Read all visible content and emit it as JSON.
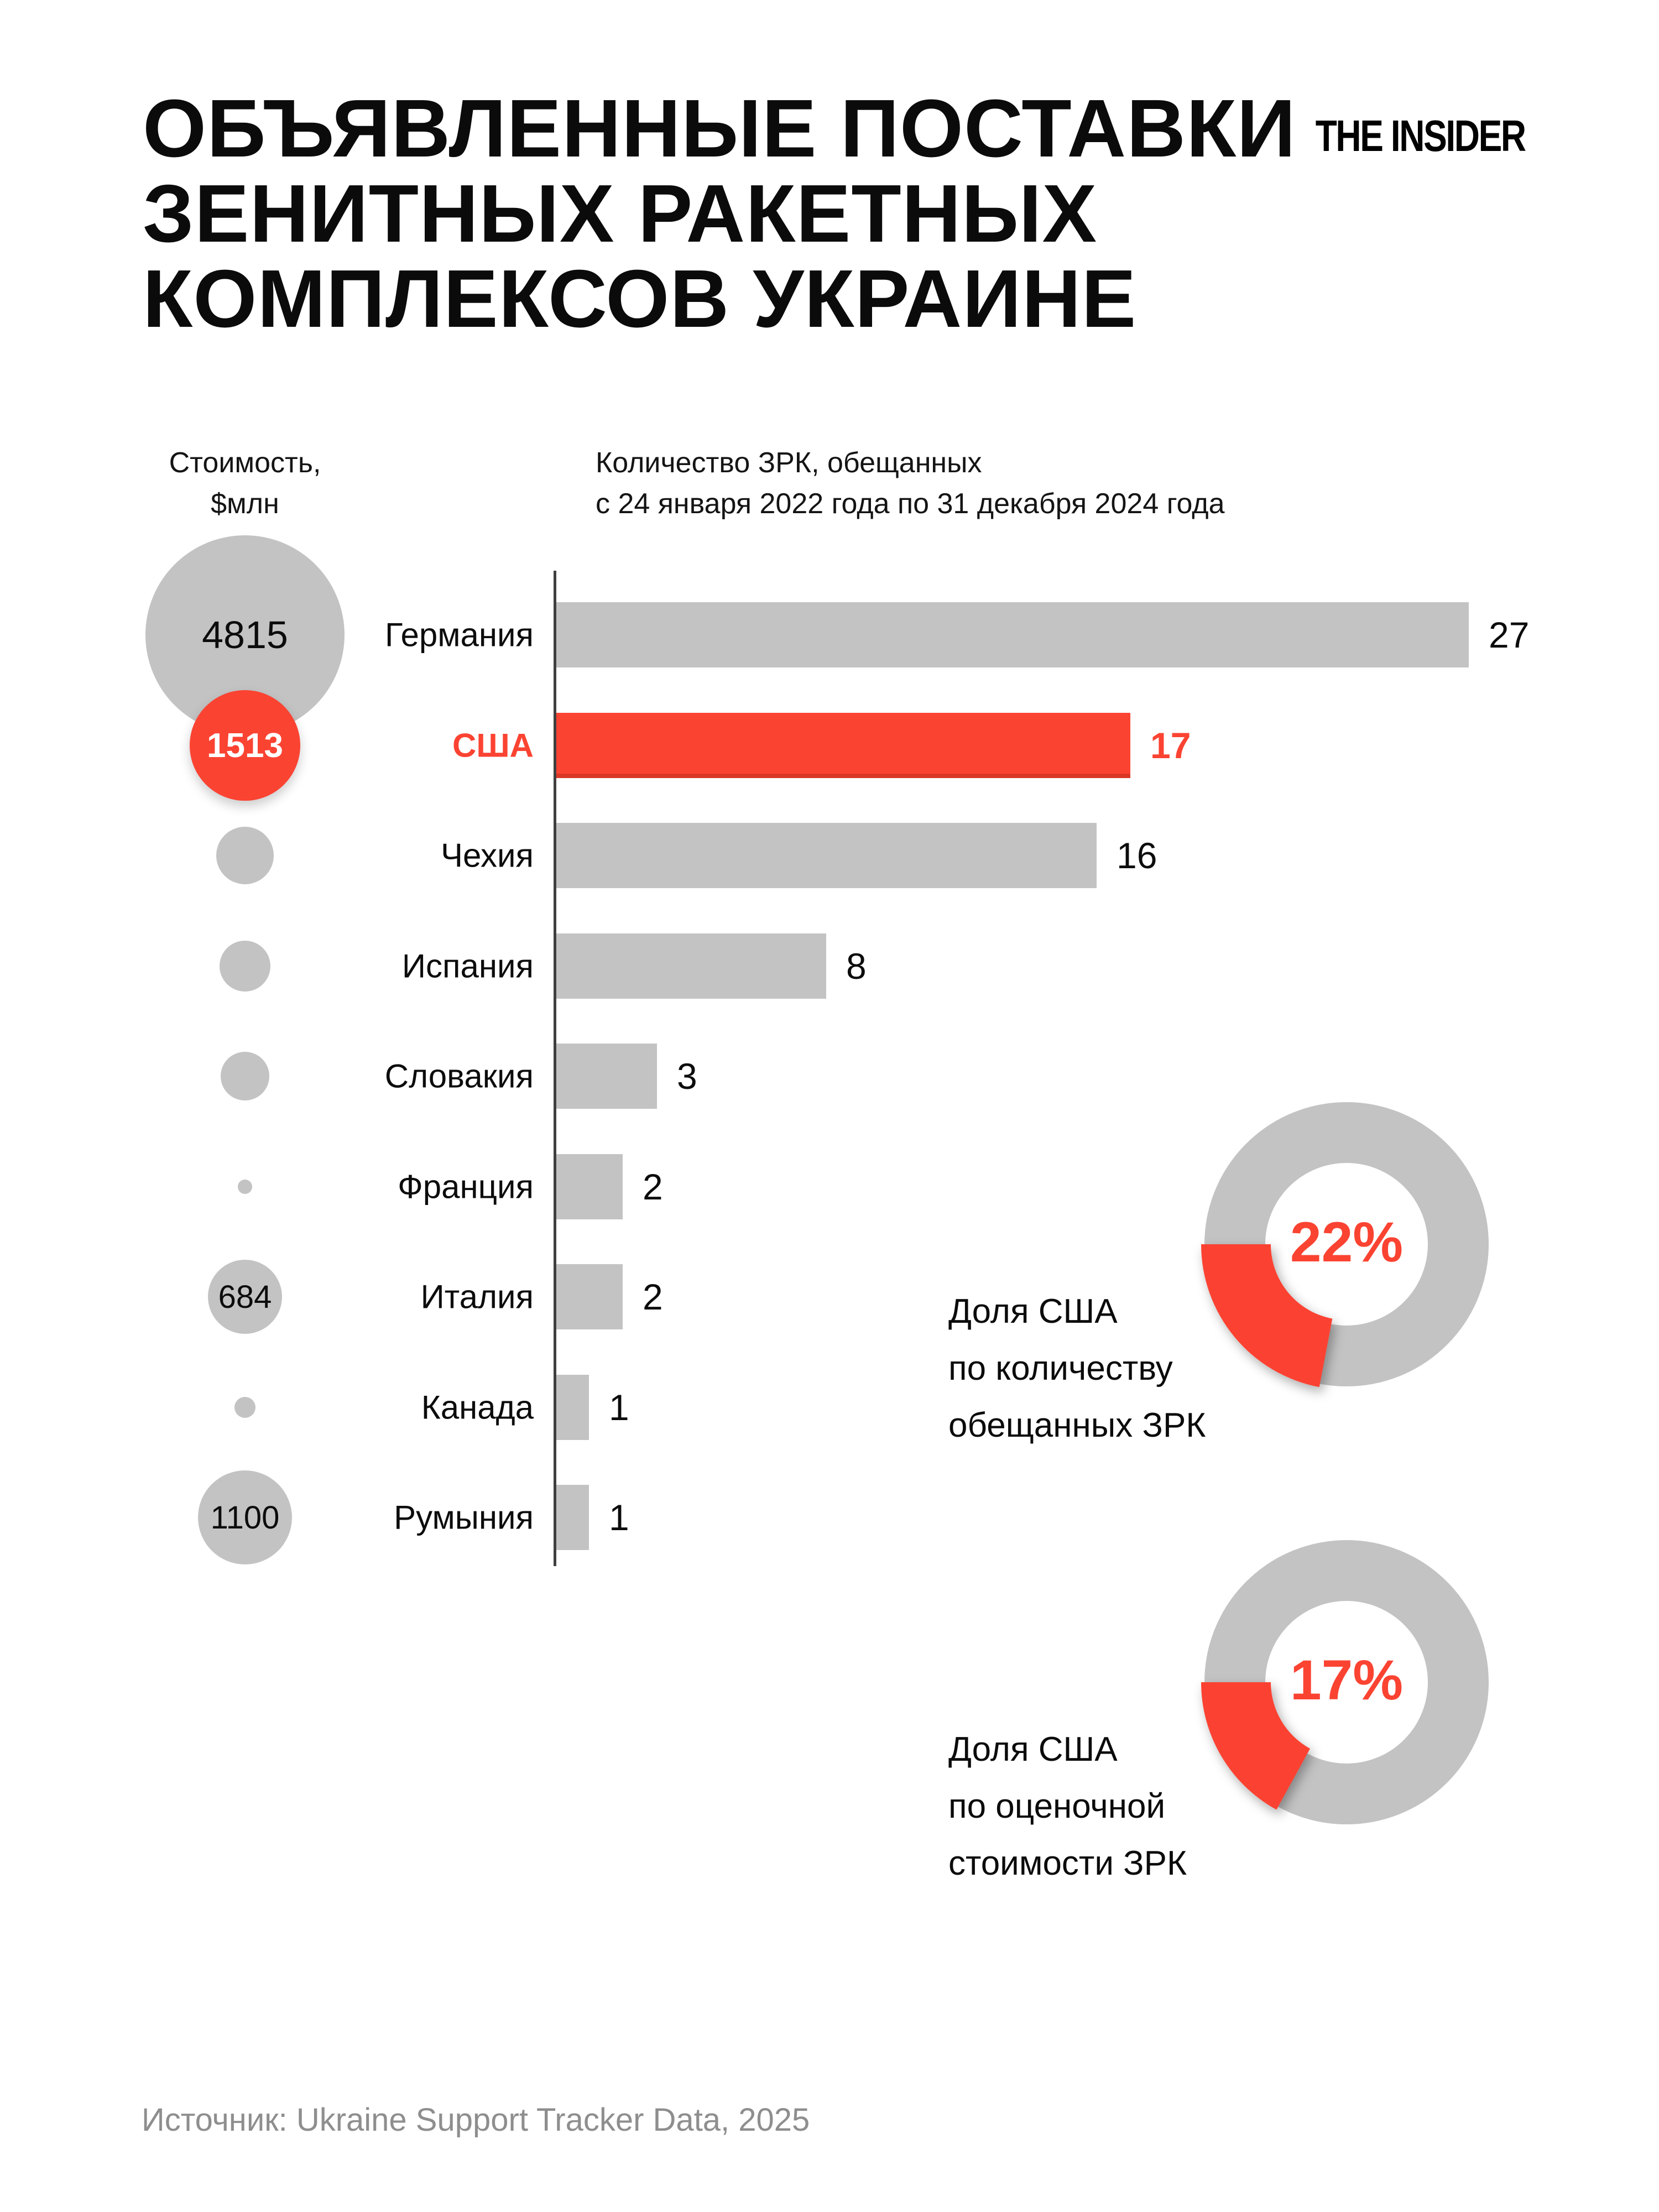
{
  "header": {
    "title_lines": [
      "ОБЪЯВЛЕННЫЕ ПОСТАВКИ",
      "ЗЕНИТНЫХ РАКЕТНЫХ",
      "КОМПЛЕКСОВ УКРАИНЕ"
    ],
    "brand": "THE INSIDER"
  },
  "colors": {
    "accent": "#fb4332",
    "gray": "#c3c3c3",
    "text": "#0b0b0b",
    "muted": "#8e8e8e",
    "axis": "#3f3f3f"
  },
  "chart_data": [
    {
      "type": "bar",
      "title": "Объявленные поставки зенитных ракетных комплексов Украине",
      "bubble_column_header_lines": [
        "Стоимость,",
        "$млн"
      ],
      "bar_column_header_lines": [
        "Количество ЗРК, обещанных",
        "с 24 января 2022 года по 31 декабря 2024 года"
      ],
      "categories": [
        "Германия",
        "США",
        "Чехия",
        "Испания",
        "Словакия",
        "Франция",
        "Италия",
        "Канада",
        "Румыния"
      ],
      "values": [
        27,
        17,
        16,
        8,
        3,
        2,
        2,
        1,
        1
      ],
      "xlim": [
        0,
        27
      ],
      "legend_position": "none",
      "grid": false,
      "rows": [
        {
          "country": "Германия",
          "value": 27,
          "cost_musd": 4815,
          "bubble_r": 180,
          "highlight": false
        },
        {
          "country": "США",
          "value": 17,
          "cost_musd": 1513,
          "bubble_r": 100,
          "highlight": true
        },
        {
          "country": "Чехия",
          "value": 16,
          "cost_musd": null,
          "bubble_r": 52,
          "highlight": false
        },
        {
          "country": "Испания",
          "value": 8,
          "cost_musd": null,
          "bubble_r": 46,
          "highlight": false
        },
        {
          "country": "Словакия",
          "value": 3,
          "cost_musd": null,
          "bubble_r": 44,
          "highlight": false
        },
        {
          "country": "Франция",
          "value": 2,
          "cost_musd": null,
          "bubble_r": 13,
          "highlight": false
        },
        {
          "country": "Италия",
          "value": 2,
          "cost_musd": 684,
          "bubble_r": 67,
          "highlight": false
        },
        {
          "country": "Канада",
          "value": 1,
          "cost_musd": null,
          "bubble_r": 19,
          "highlight": false
        },
        {
          "country": "Румыния",
          "value": 1,
          "cost_musd": 1100,
          "bubble_r": 85,
          "highlight": false
        }
      ]
    },
    {
      "type": "donut",
      "percent": 22,
      "percent_label": "22%",
      "label_lines": [
        "Доля США",
        "по количеству",
        "обещанных ЗРК"
      ]
    },
    {
      "type": "donut",
      "percent": 17,
      "percent_label": "17%",
      "label_lines": [
        "Доля США",
        "по оценочной",
        "стоимости ЗРК"
      ]
    }
  ],
  "source": "Источник: Ukraine Support Tracker Data, 2025"
}
